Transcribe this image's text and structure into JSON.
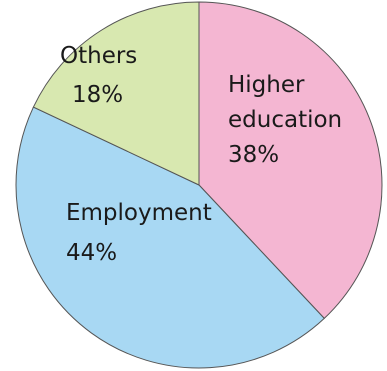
{
  "chart_data": {
    "type": "pie",
    "slices": [
      {
        "name": "Higher education",
        "label_lines": [
          "Higher",
          "education",
          "38%"
        ],
        "value": 38,
        "color": "#f4b6d2"
      },
      {
        "name": "Employment",
        "label_lines": [
          "Employment",
          "44%"
        ],
        "value": 44,
        "color": "#a8d8f3"
      },
      {
        "name": "Others",
        "label_lines": [
          "Others",
          "18%"
        ],
        "value": 18,
        "color": "#d8e8b0"
      }
    ],
    "start_angle_deg": 0,
    "direction": "clockwise",
    "legend": "none"
  }
}
